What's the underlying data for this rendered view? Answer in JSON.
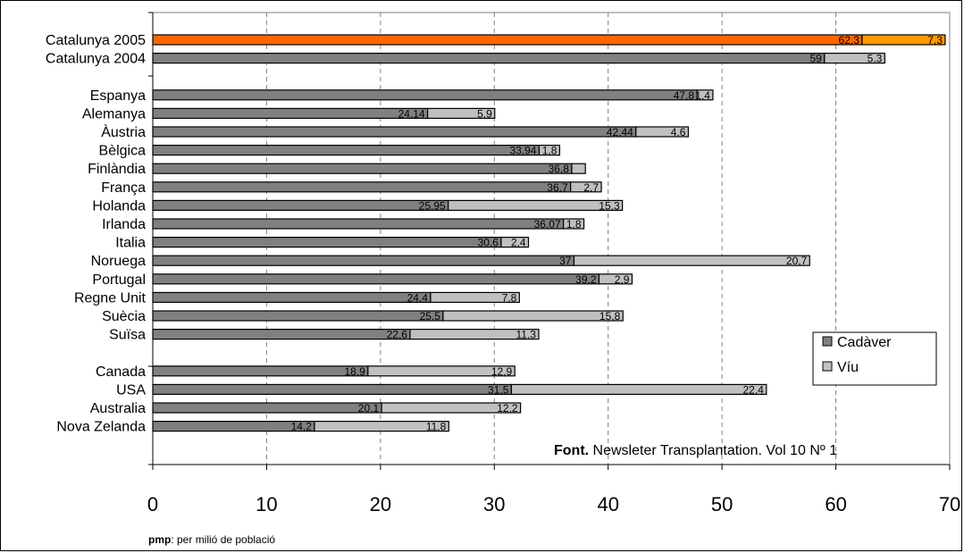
{
  "chart_data": {
    "type": "bar",
    "orientation": "horizontal",
    "stacked": true,
    "categories": [
      "Catalunya 2005",
      "Catalunya 2004",
      "",
      "Espanya",
      "Alemanya",
      "Àustria",
      "Bèlgica",
      "Finlàndia",
      "França",
      "Holanda",
      "Irlanda",
      "Italia",
      "Noruega",
      "Portugal",
      "Regne Unit",
      "Suècia",
      "Suïsa",
      "",
      "Canada",
      "USA",
      "Australia",
      "Nova Zelanda"
    ],
    "series": [
      {
        "name": "Cadàver",
        "color": "#808080",
        "values": [
          62.3,
          59,
          null,
          47.8,
          24.14,
          42.44,
          33.94,
          36.8,
          36.7,
          25.95,
          36.07,
          30.6,
          37,
          39.2,
          24.4,
          25.5,
          22.6,
          null,
          18.9,
          31.5,
          20.1,
          14.2
        ]
      },
      {
        "name": "Víu",
        "color": "#c0c0c0",
        "values": [
          7.3,
          5.3,
          null,
          1.4,
          5.9,
          4.6,
          1.8,
          1.2,
          2.7,
          15.3,
          1.8,
          2.4,
          20.7,
          2.9,
          7.8,
          15.8,
          11.3,
          null,
          12.9,
          22.4,
          12.2,
          11.8
        ]
      }
    ],
    "value_labels": [
      [
        "62,3",
        "7,3"
      ],
      [
        "59",
        "5,3"
      ],
      [
        null,
        null
      ],
      [
        "47,8",
        "1,4"
      ],
      [
        "24,14",
        "5,9"
      ],
      [
        "42,44",
        "4,6"
      ],
      [
        "33,94",
        "1,8"
      ],
      [
        "36,8",
        ""
      ],
      [
        "36,7",
        "2,7"
      ],
      [
        "25,95",
        "15,3"
      ],
      [
        "36,07",
        "1,8"
      ],
      [
        "30,6",
        "2,4"
      ],
      [
        "37",
        "20,7"
      ],
      [
        "39,2",
        "2,9"
      ],
      [
        "24,4",
        "7,8"
      ],
      [
        "25,5",
        "15,8"
      ],
      [
        "22,6",
        "11,3"
      ],
      [
        null,
        null
      ],
      [
        "18,9",
        "12,9"
      ],
      [
        "31,5",
        "22,4"
      ],
      [
        "20,1",
        "12,2"
      ],
      [
        "14,2",
        "11,8"
      ]
    ],
    "highlight": {
      "index": 0,
      "colors": [
        "#ff6600",
        "#ff9900"
      ]
    },
    "xlim": [
      0,
      70
    ],
    "xticks": [
      0,
      10,
      20,
      30,
      40,
      50,
      60,
      70
    ],
    "grid": "vertical-dashed",
    "legend_position": "lower-right"
  },
  "source": {
    "bold": "Font.",
    "text": " Newsleter Transplantation. Vol 10 Nº 1"
  },
  "footnote": {
    "bold": "pmp",
    "text": ": per milió de població"
  }
}
